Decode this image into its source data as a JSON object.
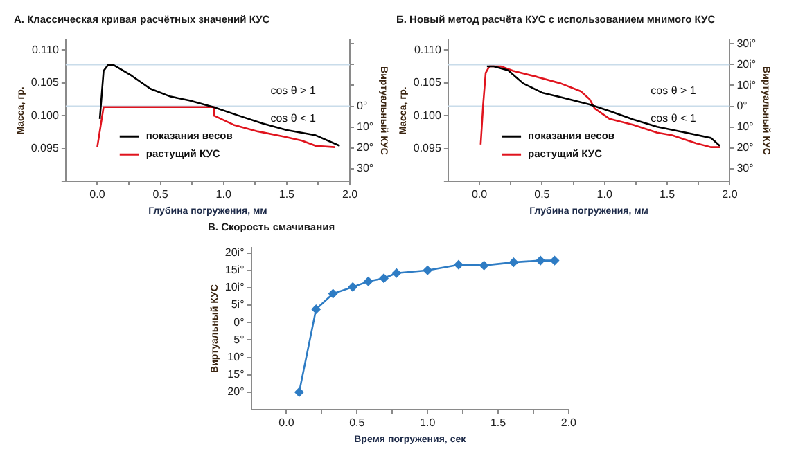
{
  "chart_data": [
    {
      "type": "line",
      "title": "А. Классическая кривая расчётных значений КУС",
      "xlabel": "Глубина погружения, мм",
      "ylabel": "Масса, гр.",
      "y2label": "Виртуальный КУС",
      "xlim": [
        -0.25,
        2.0
      ],
      "xticks": [
        {
          "value": 0,
          "label": "0.0"
        },
        {
          "value": 0.25,
          "label": null
        },
        {
          "value": 0.5,
          "label": "0.5"
        },
        {
          "value": 0.75,
          "label": null
        },
        {
          "value": 1,
          "label": "1.0"
        },
        {
          "value": 1.25,
          "label": null
        },
        {
          "value": 1.5,
          "label": "1.5"
        },
        {
          "value": 1.75,
          "label": null
        },
        {
          "value": 2,
          "label": "2.0"
        }
      ],
      "ylim": [
        0.09,
        0.1115
      ],
      "yticks": [
        {
          "value": 0.09,
          "label": null
        },
        {
          "value": 0.095,
          "label": "0.095"
        },
        {
          "value": 0.1,
          "label": "0.100"
        },
        {
          "value": 0.105,
          "label": "0.105"
        },
        {
          "value": 0.11,
          "label": "0.110"
        }
      ],
      "y2lim": [
        -36,
        31.75
      ],
      "y2ticks": [
        {
          "value": -30,
          "label": "30°"
        },
        {
          "value": -20,
          "label": "20°"
        },
        {
          "value": -10,
          "label": "10°"
        },
        {
          "value": 0,
          "label": "0°"
        },
        {
          "value": 10,
          "label": null
        },
        {
          "value": 20,
          "label": null
        },
        {
          "value": 30,
          "label": null
        }
      ],
      "series": [
        {
          "name": "показания весов",
          "color": "#000000",
          "x": [
            0.02,
            0.05,
            0.085,
            0.13,
            0.27,
            0.42,
            0.58,
            0.73,
            0.92,
            1.12,
            1.31,
            1.5,
            1.73,
            1.92
          ],
          "values": [
            0.0995,
            0.1068,
            0.1077,
            0.1077,
            0.1061,
            0.1041,
            0.1029,
            0.1023,
            0.1013,
            0.1,
            0.0988,
            0.0978,
            0.097,
            0.0954
          ]
        },
        {
          "name": "растущий КУС",
          "color": "#e0141e",
          "x": [
            0.0,
            0.05,
            0.92,
            0.925,
            1.08,
            1.27,
            1.48,
            1.62,
            1.73,
            1.88
          ],
          "values": [
            0.0952,
            0.1013,
            0.1013,
            0.1,
            0.0986,
            0.0976,
            0.0968,
            0.0962,
            0.0954,
            0.0952
          ]
        }
      ],
      "ref_lines": [
        {
          "axis": "y2",
          "value": 20,
          "color": "#c9dcea"
        },
        {
          "axis": "y2",
          "value": 0,
          "color": "#c9dcea"
        }
      ],
      "annotations": [
        "cos θ > 1",
        "cos θ < 1"
      ],
      "legend": "bottom left"
    },
    {
      "type": "line",
      "title": "Б. Новый метод расчёта КУС с использованием мнимого КУС",
      "xlabel": "Глубина погружения, мм",
      "ylabel": "Масса, гр.",
      "y2label": "Виртуальный КУС",
      "xlim": [
        -0.25,
        2.0
      ],
      "xticks": [
        {
          "value": 0,
          "label": "0.0"
        },
        {
          "value": 0.25,
          "label": null
        },
        {
          "value": 0.5,
          "label": "0.5"
        },
        {
          "value": 0.75,
          "label": null
        },
        {
          "value": 1,
          "label": "1.0"
        },
        {
          "value": 1.25,
          "label": null
        },
        {
          "value": 1.5,
          "label": "1.5"
        },
        {
          "value": 1.75,
          "label": null
        },
        {
          "value": 2,
          "label": "2.0"
        }
      ],
      "ylim": [
        0.09,
        0.1115
      ],
      "yticks": [
        {
          "value": 0.09,
          "label": null
        },
        {
          "value": 0.095,
          "label": "0.095"
        },
        {
          "value": 0.1,
          "label": "0.100"
        },
        {
          "value": 0.105,
          "label": "0.105"
        },
        {
          "value": 0.11,
          "label": "0.110"
        }
      ],
      "y2lim": [
        -36,
        31.75
      ],
      "y2ticks": [
        {
          "value": -30,
          "label": "30°"
        },
        {
          "value": -20,
          "label": "20°"
        },
        {
          "value": -10,
          "label": "10°"
        },
        {
          "value": 0,
          "label": "0°"
        },
        {
          "value": 10,
          "label": "10i°"
        },
        {
          "value": 20,
          "label": "20i°"
        },
        {
          "value": 30,
          "label": "30i°"
        }
      ],
      "series": [
        {
          "name": "показания весов",
          "color": "#000000",
          "x": [
            0.06,
            0.115,
            0.23,
            0.35,
            0.5,
            0.65,
            0.88,
            1.04,
            1.23,
            1.42,
            1.65,
            1.85,
            1.92
          ],
          "values": [
            0.1075,
            0.1075,
            0.1069,
            0.1049,
            0.1035,
            0.1028,
            0.1017,
            0.1007,
            0.0994,
            0.0983,
            0.0974,
            0.0966,
            0.0954
          ]
        },
        {
          "name": "растущий КУС",
          "color": "#e0141e",
          "x": [
            0.01,
            0.03,
            0.05,
            0.08,
            0.17,
            0.27,
            0.46,
            0.65,
            0.81,
            0.88,
            0.92,
            1.04,
            1.23,
            1.42,
            1.54,
            1.73,
            1.85,
            1.92
          ],
          "values": [
            0.0956,
            0.1017,
            0.1065,
            0.1075,
            0.1075,
            0.1068,
            0.1059,
            0.1049,
            0.1037,
            0.1025,
            0.1011,
            0.0995,
            0.0986,
            0.0974,
            0.097,
            0.0958,
            0.0952,
            0.0952
          ]
        }
      ],
      "ref_lines": [
        {
          "axis": "y2",
          "value": 20,
          "color": "#c9dcea"
        },
        {
          "axis": "y2",
          "value": 0,
          "color": "#c9dcea"
        }
      ],
      "annotations": [
        "cos θ > 1",
        "cos θ < 1"
      ],
      "legend": "bottom left"
    },
    {
      "type": "line",
      "title": "В. Скорость смачивания",
      "xlabel": "Время погружения, сек",
      "ylabel": "Виртуальный КУС",
      "marker": "diamond",
      "xlim": [
        -0.25,
        2.0
      ],
      "xticks": [
        {
          "value": 0,
          "label": "0.0"
        },
        {
          "value": 0.25,
          "label": null
        },
        {
          "value": 0.5,
          "label": "0.5"
        },
        {
          "value": 0.75,
          "label": null
        },
        {
          "value": 1,
          "label": "1.0"
        },
        {
          "value": 1.25,
          "label": null
        },
        {
          "value": 1.5,
          "label": "1.5"
        },
        {
          "value": 1.75,
          "label": null
        },
        {
          "value": 2,
          "label": "2.0"
        }
      ],
      "ylim": [
        -25,
        21.5
      ],
      "yticks": [
        {
          "value": -20,
          "label": "20°"
        },
        {
          "value": -15,
          "label": "15°"
        },
        {
          "value": -10,
          "label": "10°"
        },
        {
          "value": -5,
          "label": "5°"
        },
        {
          "value": 0,
          "label": "0°"
        },
        {
          "value": 5,
          "label": "5i°"
        },
        {
          "value": 10,
          "label": "10i°"
        },
        {
          "value": 15,
          "label": "15i°"
        },
        {
          "value": 20,
          "label": "20i°"
        }
      ],
      "series": [
        {
          "color": "#2e7cc4",
          "x": [
            0.09,
            0.21,
            0.33,
            0.47,
            0.58,
            0.69,
            0.78,
            1.0,
            1.22,
            1.4,
            1.61,
            1.8,
            1.9
          ],
          "values": [
            -20,
            3.8,
            8.3,
            10.2,
            11.8,
            12.7,
            14.2,
            15.0,
            16.6,
            16.4,
            17.3,
            17.8,
            17.8
          ]
        }
      ]
    }
  ]
}
